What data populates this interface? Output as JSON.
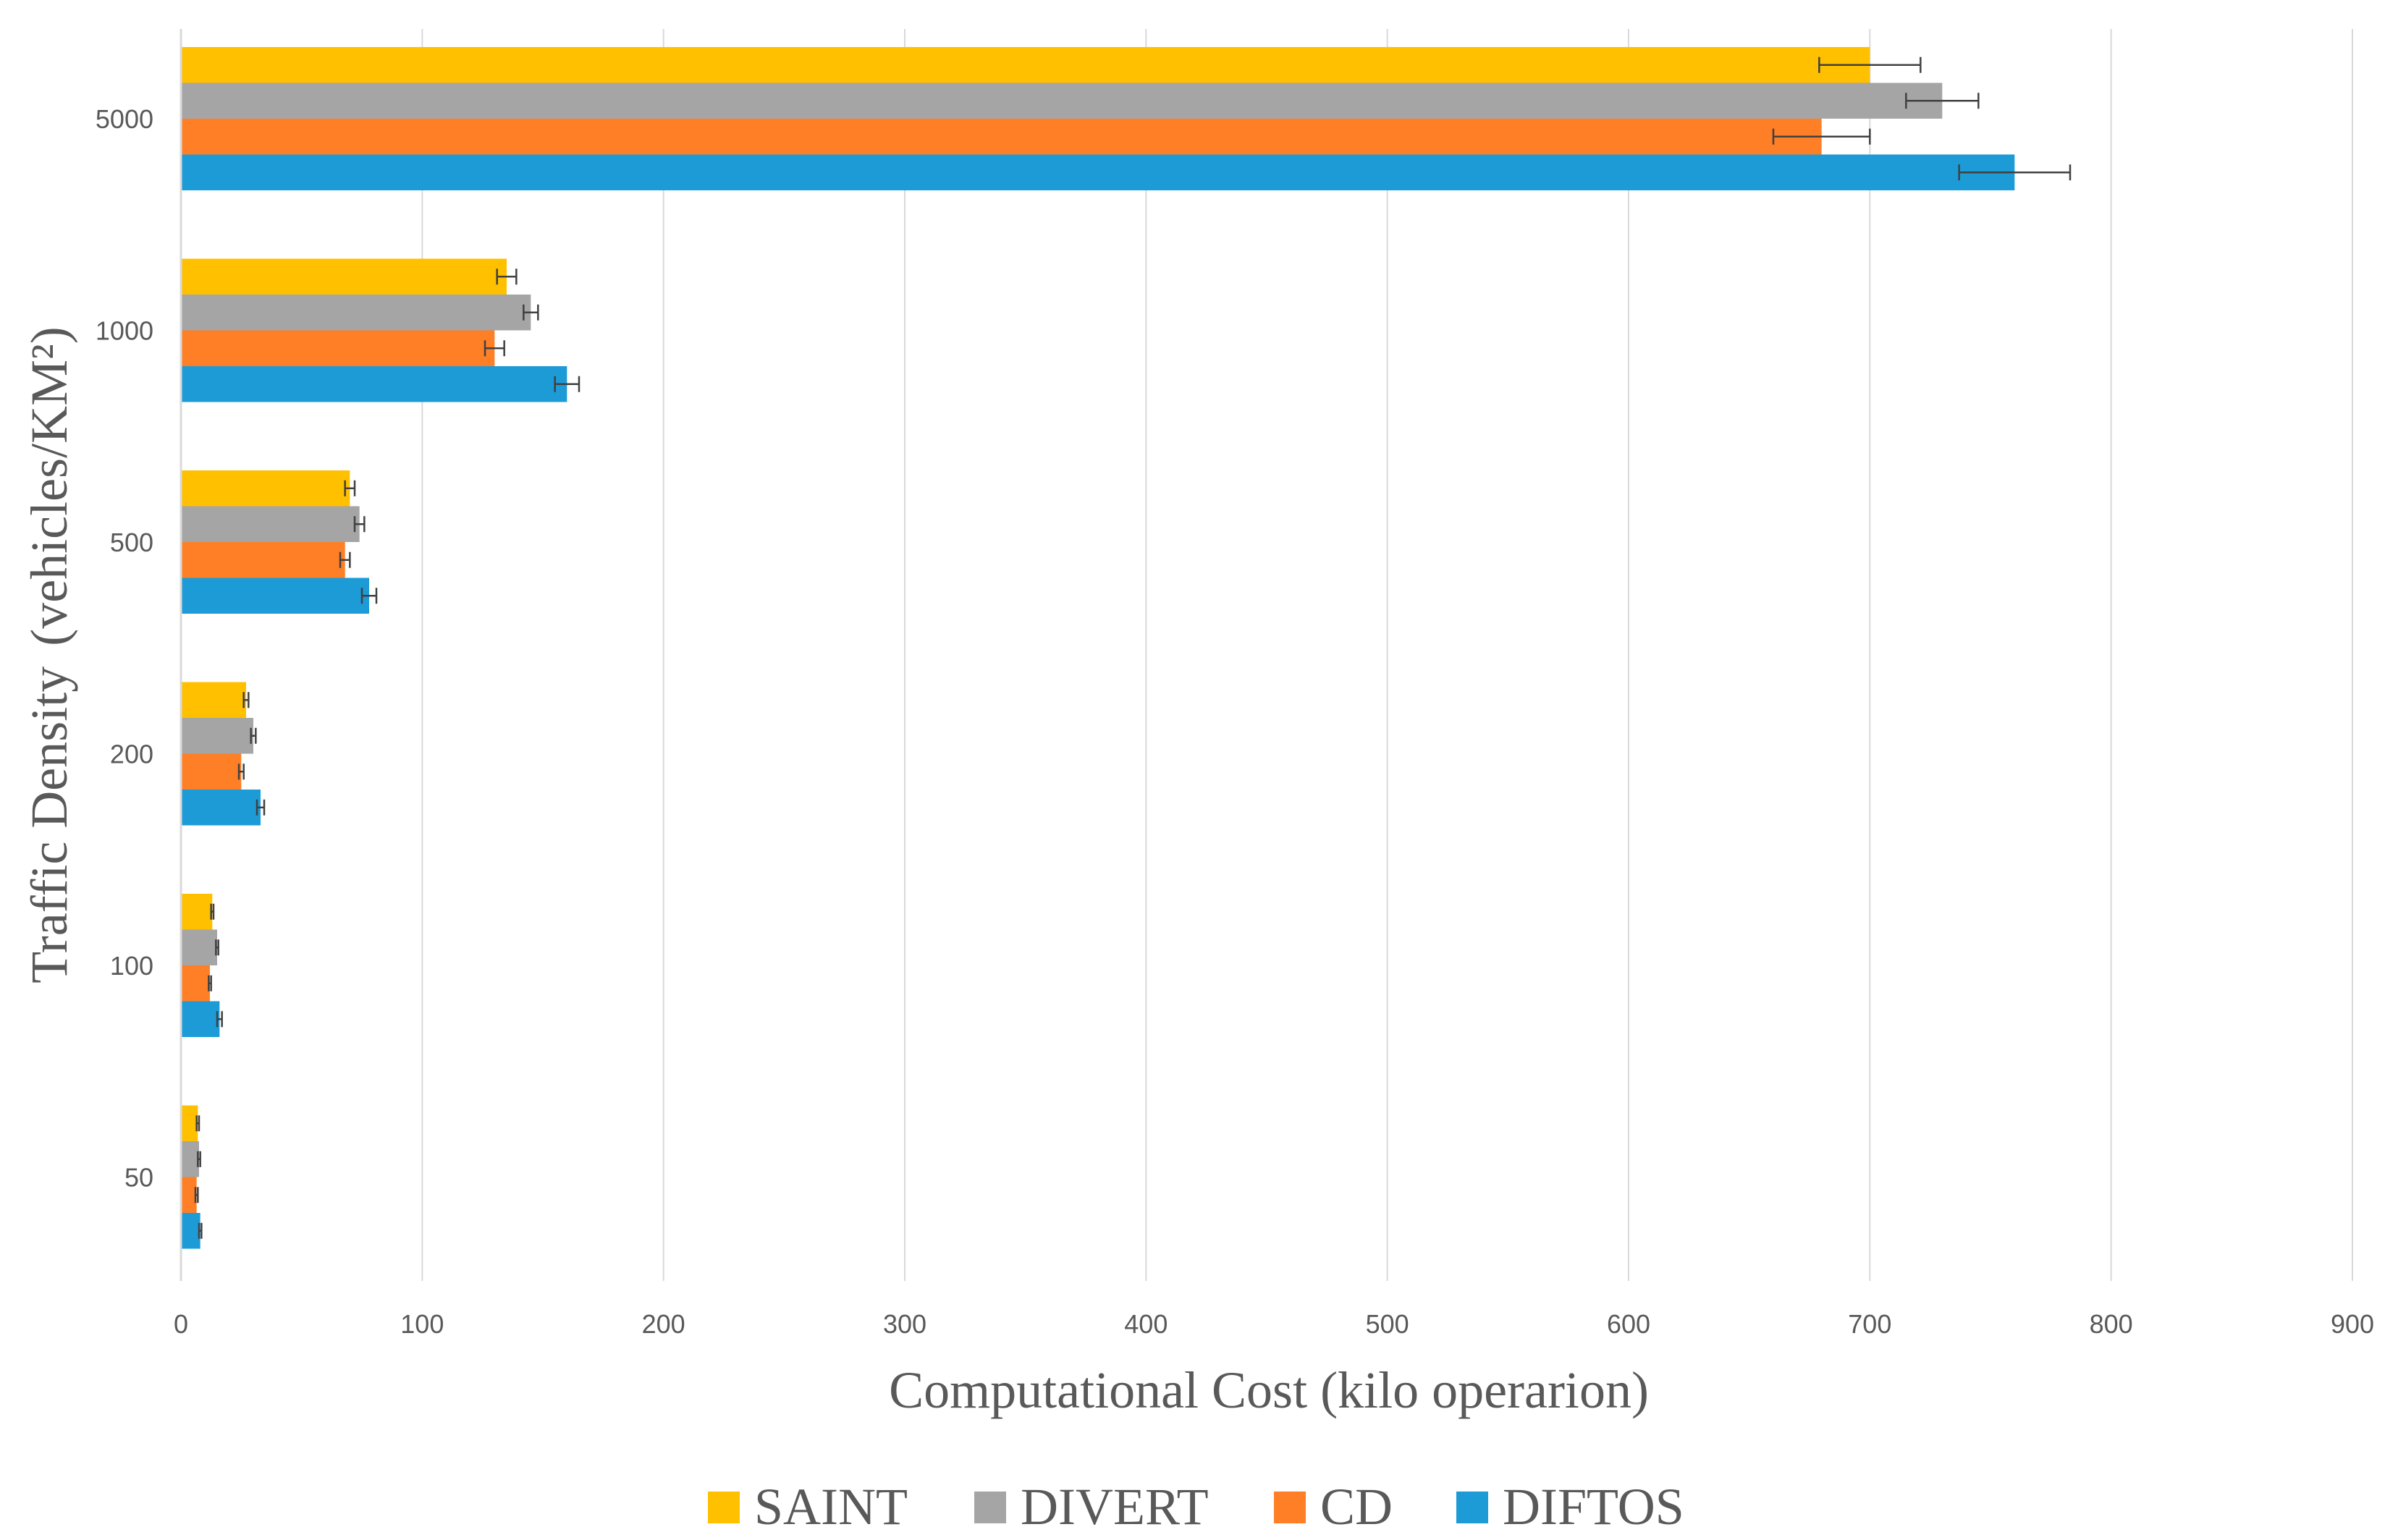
{
  "chart_data": {
    "type": "bar",
    "orientation": "horizontal",
    "title": "",
    "xlabel": "Computational Cost (kilo operarion)",
    "ylabel_main": "Traffic Density",
    "ylabel_unit": "(vehicles/KM²)",
    "categories": [
      "5000",
      "1000",
      "500",
      "200",
      "100",
      "50"
    ],
    "xlim": [
      0,
      900
    ],
    "xticks": [
      "0",
      "100",
      "200",
      "300",
      "400",
      "500",
      "600",
      "700",
      "800",
      "900"
    ],
    "grid": "vertical",
    "legend_position": "bottom",
    "series": [
      {
        "name": "SAINT",
        "color": "#FFC000",
        "values": [
          700,
          135,
          70,
          27,
          13,
          7
        ],
        "errors": [
          21,
          4,
          2,
          1,
          0.5,
          0.5
        ]
      },
      {
        "name": "DIVERT",
        "color": "#A5A5A5",
        "values": [
          730,
          145,
          74,
          30,
          15,
          7.5
        ],
        "errors": [
          15,
          3,
          2,
          1,
          0.5,
          0.5
        ]
      },
      {
        "name": "CD",
        "color": "#FF7F27",
        "values": [
          680,
          130,
          68,
          25,
          12,
          6.5
        ],
        "errors": [
          20,
          4,
          2,
          1,
          0.5,
          0.5
        ]
      },
      {
        "name": "DIFTOS",
        "color": "#1C9BD7",
        "values": [
          760,
          160,
          78,
          33,
          16,
          8
        ],
        "errors": [
          23,
          5,
          3,
          1.5,
          1,
          0.5
        ]
      }
    ]
  }
}
